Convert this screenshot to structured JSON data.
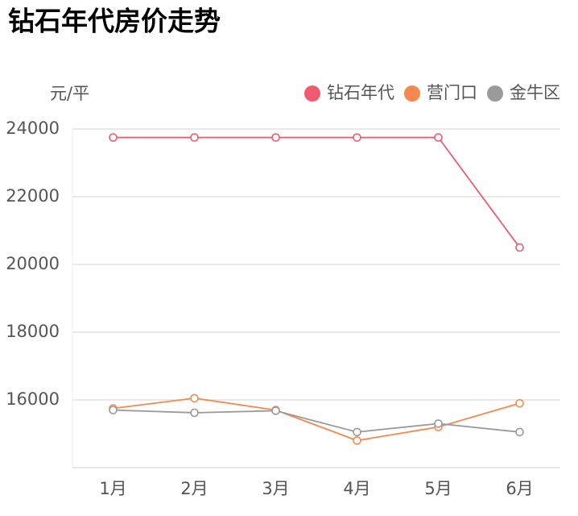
{
  "chart_data": {
    "type": "line",
    "title": "钻石年代房价走势",
    "y_label": "元/平",
    "categories": [
      "1月",
      "2月",
      "3月",
      "4月",
      "5月",
      "6月"
    ],
    "series": [
      {
        "name": "钻石年代",
        "color": "#f05a6e",
        "values": [
          23750,
          23750,
          23750,
          23750,
          23750,
          20500
        ]
      },
      {
        "name": "营门口",
        "color": "#f5894f",
        "values": [
          15750,
          16050,
          15700,
          14800,
          15200,
          15900
        ]
      },
      {
        "name": "金牛区",
        "color": "#9a9a9a",
        "values": [
          15700,
          15620,
          15680,
          15050,
          15300,
          15050
        ]
      }
    ],
    "ylim": [
      14000,
      24000
    ],
    "yticks": [
      16000,
      18000,
      20000,
      22000,
      24000
    ],
    "grid": true,
    "legend": "top-right"
  }
}
